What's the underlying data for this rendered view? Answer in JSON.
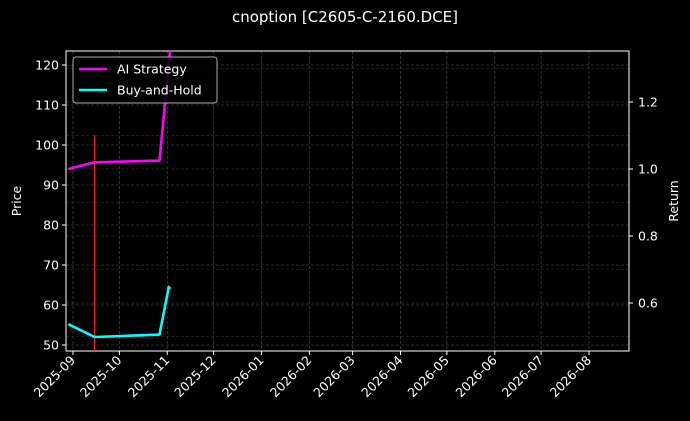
{
  "title": "cnoption [C2605-C-2160.DCE]",
  "chart_data": {
    "type": "line",
    "title": "cnoption [C2605-C-2160.DCE]",
    "xlabel": "",
    "ylabel": "Price",
    "ylabel_right": "Return",
    "x_ticks": [
      "2025-09",
      "2025-10",
      "2025-11",
      "2025-12",
      "2026-01",
      "2026-02",
      "2026-03",
      "2026-04",
      "2026-05",
      "2026-06",
      "2026-07",
      "2026-08"
    ],
    "y_ticks_left": [
      50,
      60,
      70,
      80,
      90,
      100,
      110,
      120
    ],
    "y_ticks_right": [
      0.6,
      0.8,
      1.0,
      1.2
    ],
    "ylim_left": [
      48.5,
      124
    ],
    "ylim_right": [
      0.45,
      1.35
    ],
    "grid": true,
    "legend_position": "upper left",
    "series": [
      {
        "name": "AI Strategy",
        "color": "#ff00ff",
        "axis": "right",
        "x": [
          "2025-08-29",
          "2025-09-15",
          "2025-10-27",
          "2025-11-03"
        ],
        "values": [
          1.0,
          1.02,
          1.025,
          1.36
        ]
      },
      {
        "name": "Buy-and-Hold",
        "color": "#00ffff",
        "axis": "left",
        "x": [
          "2025-08-29",
          "2025-09-15",
          "2025-10-27",
          "2025-11-02",
          "2025-11-03"
        ],
        "values": [
          55.2,
          52.0,
          52.6,
          64.5,
          64.0
        ]
      }
    ],
    "annotations": [
      {
        "type": "vline",
        "x": "2025-09-15",
        "color": "#ff2020",
        "y_top": 102.5
      }
    ]
  },
  "legend": [
    "AI Strategy",
    "Buy-and-Hold"
  ],
  "axes": {
    "left_label": "Price",
    "right_label": "Return"
  }
}
